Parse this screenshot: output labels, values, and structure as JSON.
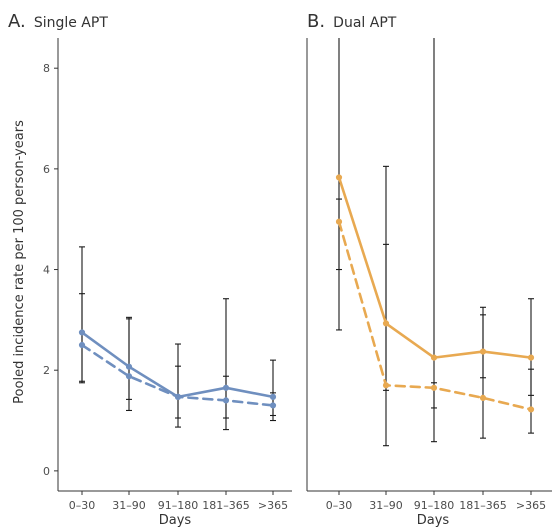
{
  "chart_data": [
    {
      "type": "line",
      "panel_letter": "A.",
      "title": "Single APT",
      "xlabel": "Days",
      "ylabel": "Pooled incidence rate per 100 person-years",
      "categories": [
        "0–30",
        "31–90",
        "91–180",
        "181–365",
        ">365"
      ],
      "ylim": [
        -0.4,
        8.6
      ],
      "yticks": [
        0,
        2,
        4,
        6,
        8
      ],
      "grid": false,
      "color": "#6f8fbf",
      "series": [
        {
          "style": "solid",
          "values": [
            2.75,
            2.07,
            1.47,
            1.65,
            1.47
          ],
          "lower": [
            1.75,
            1.2,
            0.87,
            0.82,
            1.1
          ],
          "upper": [
            4.45,
            3.05,
            2.52,
            3.42,
            2.2
          ]
        },
        {
          "style": "dashed",
          "values": [
            2.5,
            1.88,
            1.47,
            1.4,
            1.3
          ],
          "lower": [
            1.78,
            1.42,
            1.05,
            1.05,
            1.0
          ],
          "upper": [
            3.52,
            3.02,
            2.08,
            1.88,
            1.55
          ]
        }
      ]
    },
    {
      "type": "line",
      "panel_letter": "B.",
      "title": "Dual APT",
      "xlabel": "Days",
      "categories": [
        "0–30",
        "31–90",
        "91–180",
        "181–365",
        ">365"
      ],
      "ylim": [
        -0.4,
        8.6
      ],
      "grid": false,
      "color": "#e8a951",
      "series": [
        {
          "style": "solid",
          "values": [
            5.83,
            2.93,
            2.25,
            2.37,
            2.25
          ],
          "lower": [
            4.0,
            0.5,
            0.58,
            1.85,
            1.5
          ],
          "upper": [
            8.6,
            6.05,
            8.6,
            3.25,
            3.42
          ]
        },
        {
          "style": "dashed",
          "values": [
            4.95,
            1.7,
            1.65,
            1.45,
            1.22
          ],
          "lower": [
            2.8,
            1.6,
            1.25,
            0.65,
            0.75
          ],
          "upper": [
            5.4,
            4.5,
            1.75,
            3.1,
            2.02
          ]
        }
      ]
    }
  ]
}
